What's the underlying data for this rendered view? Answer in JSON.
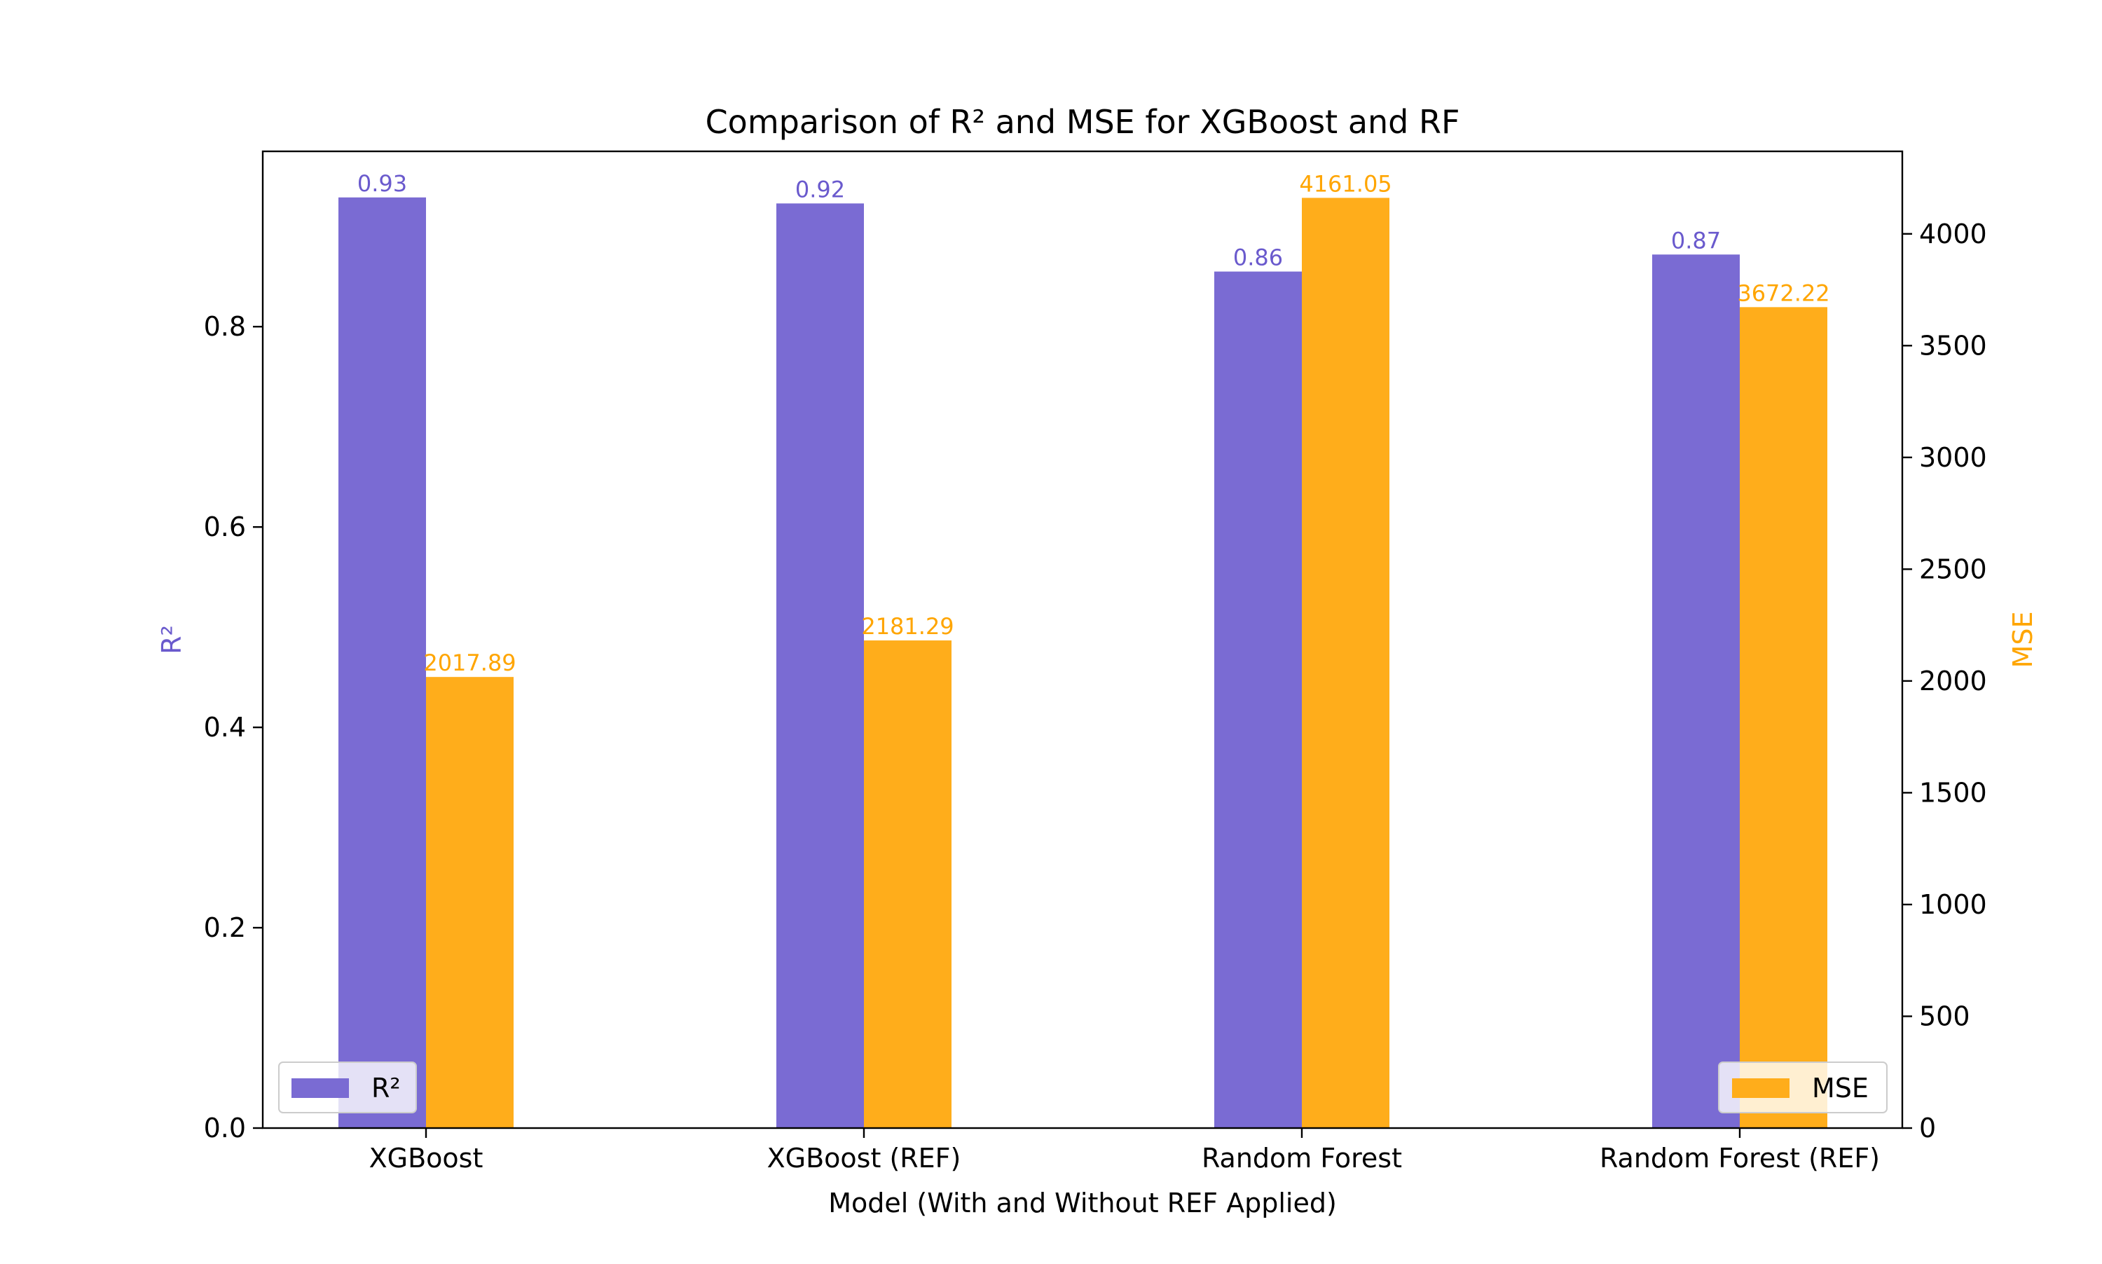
{
  "chart_data": {
    "type": "bar",
    "title": "Comparison of R² and MSE for XGBoost and RF",
    "xlabel": "Model (With and Without REF Applied)",
    "categories": [
      "XGBoost",
      "XGBoost (REF)",
      "Random Forest",
      "Random Forest (REF)"
    ],
    "series": [
      {
        "name": "R²",
        "axis": "left",
        "color": "#7a6bd3",
        "values": [
          0.929,
          0.923,
          0.855,
          0.872
        ],
        "labels": [
          "0.93",
          "0.92",
          "0.86",
          "0.87"
        ]
      },
      {
        "name": "MSE",
        "axis": "right",
        "color": "#ffad1b",
        "values": [
          2017.89,
          2181.29,
          4161.05,
          3672.22
        ],
        "labels": [
          "2017.89",
          "2181.29",
          "4161.05",
          "3672.22"
        ]
      }
    ],
    "left_axis": {
      "label": "R²",
      "label_color": "#6a5acd",
      "ylim": [
        0,
        0.975
      ],
      "ticks": [
        0.0,
        0.2,
        0.4,
        0.6,
        0.8
      ],
      "tick_labels": [
        "0.0",
        "0.2",
        "0.4",
        "0.6",
        "0.8"
      ]
    },
    "right_axis": {
      "label": "MSE",
      "label_color": "#ffa500",
      "ylim": [
        0,
        4369.1
      ],
      "ticks": [
        0,
        500,
        1000,
        1500,
        2000,
        2500,
        3000,
        3500,
        4000
      ],
      "tick_labels": [
        "0",
        "500",
        "1000",
        "1500",
        "2000",
        "2500",
        "3000",
        "3500",
        "4000"
      ]
    },
    "legends": [
      {
        "placement": "lower-left",
        "entries": [
          "R²"
        ]
      },
      {
        "placement": "lower-right",
        "entries": [
          "MSE"
        ]
      }
    ],
    "grid": false
  }
}
